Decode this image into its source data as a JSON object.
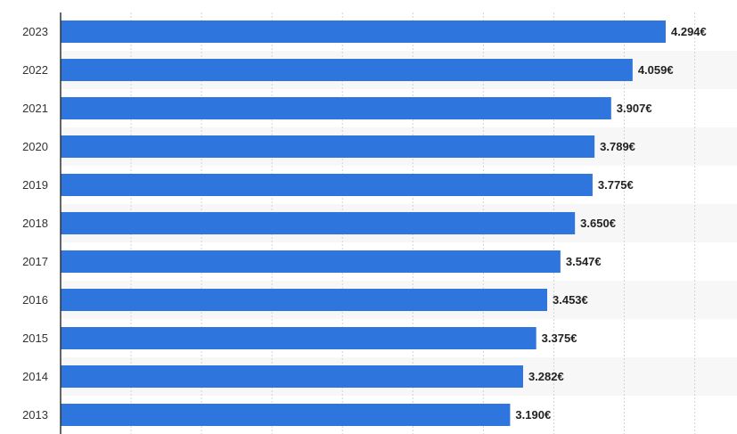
{
  "chart_data": {
    "type": "bar",
    "orientation": "horizontal",
    "categories": [
      "2023",
      "2022",
      "2021",
      "2020",
      "2019",
      "2018",
      "2017",
      "2016",
      "2015",
      "2014",
      "2013"
    ],
    "values": [
      4.294,
      4.059,
      3.907,
      3.789,
      3.775,
      3.65,
      3.547,
      3.453,
      3.375,
      3.282,
      3.19
    ],
    "value_labels": [
      "4.294€",
      "4.059€",
      "3.907€",
      "3.789€",
      "3.775€",
      "3.650€",
      "3.547€",
      "3.453€",
      "3.375€",
      "3.282€",
      "3.190€"
    ],
    "xlim": [
      0,
      4.6
    ],
    "grid": true,
    "bar_color": "#2f75de",
    "alternate_row_color": "#f7f7f7"
  }
}
